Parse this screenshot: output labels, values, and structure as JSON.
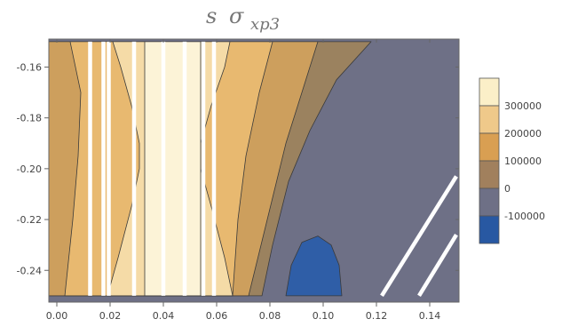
{
  "chart_data": {
    "type": "contour",
    "title": "s",
    "title_sigma": "σ",
    "title_subscript": "xp3",
    "xlabel": "",
    "ylabel": "",
    "xlim": [
      -0.003,
      0.151
    ],
    "ylim": [
      -0.2525,
      -0.149
    ],
    "x_ticks": [
      {
        "value": 0.0,
        "label": "0.00"
      },
      {
        "value": 0.02,
        "label": "0.02"
      },
      {
        "value": 0.04,
        "label": "0.04"
      },
      {
        "value": 0.06,
        "label": "0.06"
      },
      {
        "value": 0.08,
        "label": "0.08"
      },
      {
        "value": 0.1,
        "label": "0.10"
      },
      {
        "value": 0.12,
        "label": "0.12"
      },
      {
        "value": 0.14,
        "label": "0.14"
      }
    ],
    "y_ticks": [
      {
        "value": -0.16,
        "label": "-0.16"
      },
      {
        "value": -0.18,
        "label": "-0.18"
      },
      {
        "value": -0.2,
        "label": "-0.20"
      },
      {
        "value": -0.22,
        "label": "-0.22"
      },
      {
        "value": -0.24,
        "label": "-0.24"
      }
    ],
    "legend": {
      "placement": "right",
      "levels": [
        {
          "label": "300000",
          "color": "#fbefc8"
        },
        {
          "label": "200000",
          "color": "#efc98a"
        },
        {
          "label": "100000",
          "color": "#d99f52"
        },
        {
          "label": "0",
          "color": "#a1805d"
        },
        {
          "label": "-100000",
          "color": "#6e7086"
        },
        {
          "label": "",
          "color": "#2858a2"
        }
      ]
    },
    "bands": [
      {
        "level": 3,
        "color": "#fcf3d7",
        "points": [
          [
            0.033,
            -0.15
          ],
          [
            0.054,
            -0.15
          ],
          [
            0.054,
            -0.25
          ],
          [
            0.033,
            -0.25
          ]
        ]
      },
      {
        "level": 2,
        "color": "#f5dba7",
        "points": [
          [
            0.021,
            -0.15
          ],
          [
            0.065,
            -0.15
          ],
          [
            0.063,
            -0.16
          ],
          [
            0.058,
            -0.175
          ],
          [
            0.054,
            -0.19
          ],
          [
            0.054,
            -0.2
          ],
          [
            0.058,
            -0.215
          ],
          [
            0.063,
            -0.235
          ],
          [
            0.066,
            -0.25
          ],
          [
            0.019,
            -0.25
          ],
          [
            0.023,
            -0.235
          ],
          [
            0.028,
            -0.215
          ],
          [
            0.031,
            -0.2
          ],
          [
            0.031,
            -0.19
          ],
          [
            0.028,
            -0.175
          ],
          [
            0.024,
            -0.16
          ]
        ]
      },
      {
        "level": 1,
        "color": "#e8b970",
        "points": [
          [
            0.005,
            -0.15
          ],
          [
            0.081,
            -0.15
          ],
          [
            0.076,
            -0.17
          ],
          [
            0.071,
            -0.195
          ],
          [
            0.068,
            -0.22
          ],
          [
            0.066,
            -0.25
          ],
          [
            0.003,
            -0.25
          ],
          [
            0.006,
            -0.22
          ],
          [
            0.008,
            -0.195
          ],
          [
            0.009,
            -0.17
          ]
        ]
      },
      {
        "level": 0,
        "color": "#cd9f5d",
        "points": [
          [
            -0.003,
            -0.15
          ],
          [
            0.098,
            -0.15
          ],
          [
            0.092,
            -0.17
          ],
          [
            0.086,
            -0.19
          ],
          [
            0.079,
            -0.22
          ],
          [
            0.072,
            -0.25
          ],
          [
            -0.003,
            -0.25
          ]
        ]
      },
      {
        "level": -1,
        "color": "#9b825f",
        "points": [
          [
            -0.003,
            -0.15
          ],
          [
            0.118,
            -0.15
          ],
          [
            0.105,
            -0.165
          ],
          [
            0.095,
            -0.185
          ],
          [
            0.087,
            -0.205
          ],
          [
            0.081,
            -0.23
          ],
          [
            0.077,
            -0.25
          ],
          [
            -0.003,
            -0.25
          ]
        ]
      },
      {
        "level": -2,
        "color": "#2f5ea7",
        "points": [
          [
            0.086,
            -0.25
          ],
          [
            0.088,
            -0.238
          ],
          [
            0.092,
            -0.229
          ],
          [
            0.098,
            -0.2265
          ],
          [
            0.103,
            -0.23
          ],
          [
            0.106,
            -0.238
          ],
          [
            0.107,
            -0.25
          ]
        ]
      }
    ],
    "white_lines": [
      [
        [
          0.0125,
          -0.15
        ],
        [
          0.0125,
          -0.25
        ]
      ],
      [
        [
          0.0175,
          -0.15
        ],
        [
          0.0175,
          -0.25
        ]
      ],
      [
        [
          0.0195,
          -0.15
        ],
        [
          0.0195,
          -0.25
        ]
      ],
      [
        [
          0.029,
          -0.15
        ],
        [
          0.029,
          -0.25
        ]
      ],
      [
        [
          0.04,
          -0.15
        ],
        [
          0.04,
          -0.25
        ]
      ],
      [
        [
          0.048,
          -0.15
        ],
        [
          0.048,
          -0.25
        ]
      ],
      [
        [
          0.055,
          -0.15
        ],
        [
          0.055,
          -0.25
        ]
      ],
      [
        [
          0.059,
          -0.15
        ],
        [
          0.059,
          -0.25
        ]
      ],
      [
        [
          0.122,
          -0.25
        ],
        [
          0.15,
          -0.203
        ]
      ],
      [
        [
          0.136,
          -0.25
        ],
        [
          0.15,
          -0.226
        ]
      ]
    ],
    "background_color": "#6e7086"
  }
}
